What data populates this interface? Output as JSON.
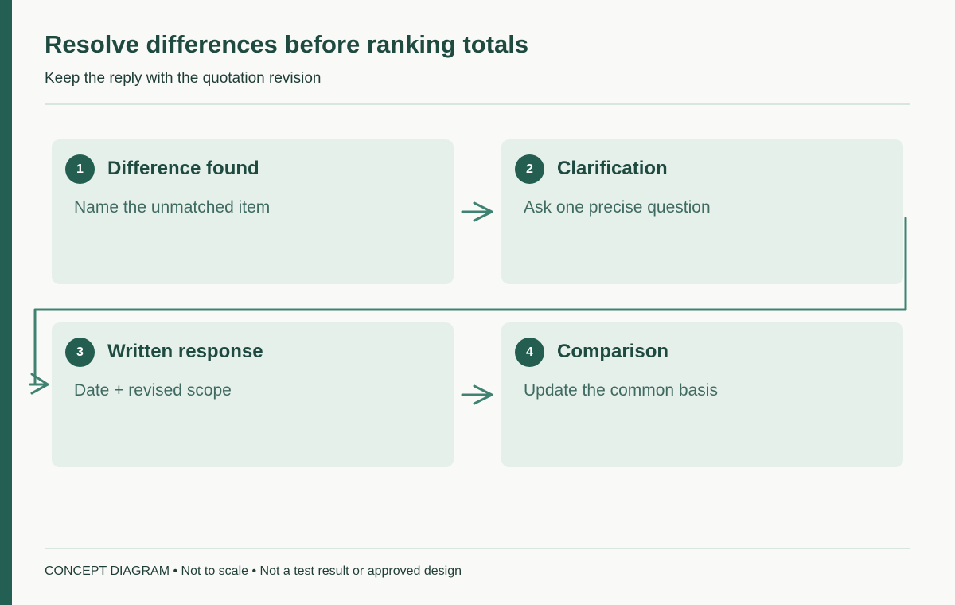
{
  "header": {
    "title": "Resolve differences before ranking totals",
    "subtitle": "Keep the reply with the quotation revision"
  },
  "steps": [
    {
      "number": "1",
      "title": "Difference found",
      "description": "Name the unmatched item"
    },
    {
      "number": "2",
      "title": "Clarification",
      "description": "Ask one precise question"
    },
    {
      "number": "3",
      "title": "Written response",
      "description": "Date + revised scope"
    },
    {
      "number": "4",
      "title": "Comparison",
      "description": "Update the common basis"
    }
  ],
  "footer": {
    "note": "CONCEPT DIAGRAM • Not to scale • Not a test result or approved design"
  },
  "colors": {
    "accent": "#245f53",
    "card_background": "#e6f0eb",
    "connector": "#3f8271",
    "page_background": "#f9f9f7"
  },
  "icons": {
    "connector": "arrow-right-icon"
  }
}
